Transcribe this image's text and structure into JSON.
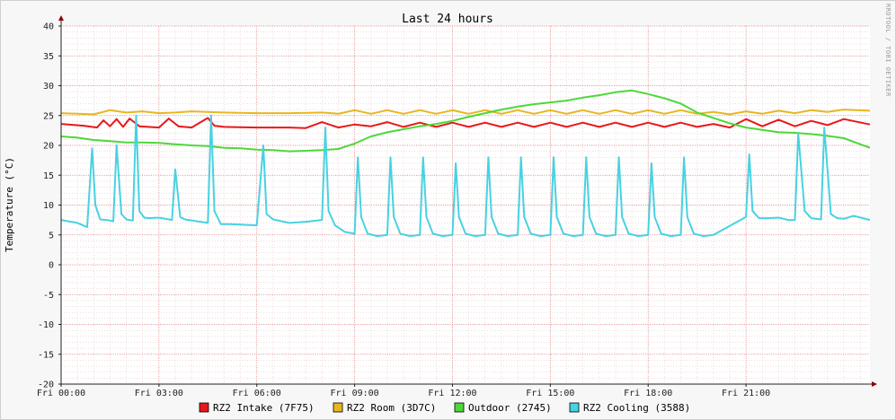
{
  "chart_data": {
    "type": "line",
    "title": "Last 24 hours",
    "ylabel": "Temperature (°C)",
    "xlabel": "",
    "watermark": "RRDTOOL / TOBI OETIKER",
    "x_ticks": [
      "Fri 00:00",
      "Fri 03:00",
      "Fri 06:00",
      "Fri 09:00",
      "Fri 12:00",
      "Fri 15:00",
      "Fri 18:00",
      "Fri 21:00"
    ],
    "xlim": [
      0,
      24.8
    ],
    "ylim": [
      -20,
      40
    ],
    "y_ticks": [
      -20,
      -15,
      -10,
      -5,
      0,
      5,
      10,
      15,
      20,
      25,
      30,
      35,
      40
    ],
    "grid": true,
    "legend_position": "bottom",
    "series": [
      {
        "name": "RZ2 Intake (7F75)",
        "color": "#e8181a",
        "x": [
          0,
          0.7,
          1.1,
          1.3,
          1.5,
          1.7,
          1.9,
          2.1,
          2.4,
          3.0,
          3.3,
          3.6,
          4.0,
          4.5,
          4.7,
          5.0,
          6.0,
          7.0,
          7.5,
          8.0,
          8.5,
          9.0,
          9.5,
          10.0,
          10.5,
          11.0,
          11.5,
          12.0,
          12.5,
          13.0,
          13.5,
          14.0,
          14.5,
          15.0,
          15.5,
          16.0,
          16.5,
          17.0,
          17.5,
          18.0,
          18.5,
          19.0,
          19.5,
          20.0,
          20.5,
          21.0,
          21.5,
          22.0,
          22.5,
          23.0,
          23.5,
          24.0,
          24.8
        ],
        "y": [
          23.6,
          23.3,
          23.0,
          24.2,
          23.2,
          24.4,
          23.1,
          24.5,
          23.2,
          23.0,
          24.5,
          23.2,
          23.0,
          24.6,
          23.3,
          23.1,
          23.0,
          23.0,
          22.9,
          23.9,
          23.0,
          23.5,
          23.2,
          23.9,
          23.1,
          23.8,
          23.1,
          23.8,
          23.1,
          23.8,
          23.1,
          23.8,
          23.1,
          23.8,
          23.1,
          23.8,
          23.1,
          23.8,
          23.1,
          23.8,
          23.1,
          23.8,
          23.1,
          23.6,
          23.0,
          24.4,
          23.2,
          24.3,
          23.2,
          24.1,
          23.4,
          24.4,
          23.5
        ]
      },
      {
        "name": "RZ2 Room (3D7C)",
        "color": "#e6b71e",
        "x": [
          0,
          1.0,
          1.5,
          2.0,
          2.5,
          3.0,
          3.5,
          4.0,
          5.0,
          6.0,
          7.0,
          8.0,
          8.5,
          9.0,
          9.5,
          10.0,
          10.5,
          11.0,
          11.5,
          12.0,
          12.5,
          13.0,
          13.5,
          14.0,
          14.5,
          15.0,
          15.5,
          16.0,
          16.5,
          17.0,
          17.5,
          18.0,
          18.5,
          19.0,
          19.5,
          20.0,
          20.5,
          21.0,
          21.5,
          22.0,
          22.5,
          23.0,
          23.5,
          24.0,
          24.8
        ],
        "y": [
          25.4,
          25.2,
          25.9,
          25.5,
          25.7,
          25.4,
          25.5,
          25.7,
          25.5,
          25.4,
          25.4,
          25.5,
          25.3,
          25.9,
          25.3,
          25.9,
          25.3,
          25.9,
          25.3,
          25.9,
          25.3,
          25.9,
          25.3,
          25.9,
          25.3,
          25.9,
          25.3,
          25.9,
          25.3,
          25.9,
          25.3,
          25.9,
          25.3,
          25.9,
          25.3,
          25.6,
          25.2,
          25.7,
          25.3,
          25.8,
          25.4,
          25.9,
          25.6,
          26.0,
          25.8
        ]
      },
      {
        "name": "Outdoor (2745)",
        "color": "#4dd839",
        "x": [
          0,
          0.5,
          1.0,
          1.5,
          2.0,
          2.5,
          3.0,
          3.5,
          4.0,
          4.5,
          5.0,
          5.5,
          6.0,
          6.5,
          7.0,
          7.5,
          8.0,
          8.5,
          9.0,
          9.5,
          10.0,
          10.5,
          11.0,
          11.5,
          12.0,
          12.5,
          13.0,
          13.5,
          14.0,
          14.5,
          15.0,
          15.5,
          16.0,
          16.5,
          17.0,
          17.5,
          18.0,
          18.5,
          19.0,
          19.5,
          20.0,
          20.5,
          21.0,
          21.5,
          22.0,
          22.5,
          23.0,
          23.5,
          24.0,
          24.8
        ],
        "y": [
          21.5,
          21.3,
          20.9,
          20.7,
          20.5,
          20.5,
          20.4,
          20.2,
          20.0,
          19.9,
          19.6,
          19.5,
          19.3,
          19.2,
          19.0,
          19.1,
          19.2,
          19.4,
          20.3,
          21.5,
          22.2,
          22.7,
          23.2,
          23.6,
          24.1,
          24.8,
          25.4,
          26.0,
          26.5,
          26.9,
          27.2,
          27.5,
          28.0,
          28.4,
          28.9,
          29.2,
          28.6,
          27.9,
          27.0,
          25.5,
          24.6,
          23.7,
          23.0,
          22.6,
          22.2,
          22.1,
          21.9,
          21.6,
          21.2,
          19.6
        ]
      },
      {
        "name": "RZ2 Cooling (3588)",
        "color": "#47d2e2",
        "x": [
          0,
          0.5,
          0.8,
          0.95,
          1.05,
          1.2,
          1.4,
          1.6,
          1.7,
          1.85,
          2.0,
          2.2,
          2.3,
          2.4,
          2.55,
          2.7,
          3.0,
          3.4,
          3.5,
          3.65,
          3.8,
          4.5,
          4.6,
          4.7,
          4.9,
          5.2,
          6.0,
          6.2,
          6.3,
          6.5,
          7.0,
          7.5,
          8.0,
          8.1,
          8.2,
          8.4,
          8.7,
          9.0,
          9.1,
          9.2,
          9.4,
          9.7,
          10.0,
          10.1,
          10.2,
          10.4,
          10.7,
          11.0,
          11.1,
          11.2,
          11.4,
          11.7,
          12.0,
          12.1,
          12.2,
          12.4,
          12.7,
          13.0,
          13.1,
          13.2,
          13.4,
          13.7,
          14.0,
          14.1,
          14.2,
          14.4,
          14.7,
          15.0,
          15.1,
          15.2,
          15.4,
          15.7,
          16.0,
          16.1,
          16.2,
          16.4,
          16.7,
          17.0,
          17.1,
          17.2,
          17.4,
          17.7,
          18.0,
          18.1,
          18.2,
          18.4,
          18.7,
          19.0,
          19.1,
          19.2,
          19.4,
          19.7,
          20.0,
          20.5,
          21.0,
          21.1,
          21.2,
          21.4,
          21.7,
          22.0,
          22.3,
          22.5,
          22.6,
          22.8,
          23.0,
          23.3,
          23.4,
          23.6,
          23.8,
          24.0,
          24.3,
          24.8
        ],
        "y": [
          7.5,
          7.0,
          6.3,
          19.5,
          10.0,
          7.6,
          7.5,
          7.3,
          20.0,
          8.5,
          7.6,
          7.4,
          25.0,
          9.0,
          7.9,
          7.8,
          7.9,
          7.5,
          16.0,
          8.0,
          7.6,
          7.0,
          25.0,
          9.0,
          6.8,
          6.8,
          6.6,
          20.0,
          8.5,
          7.6,
          7.0,
          7.2,
          7.5,
          23.0,
          9.0,
          6.6,
          5.5,
          5.2,
          18.0,
          8.0,
          5.2,
          4.8,
          5.0,
          18.0,
          8.0,
          5.2,
          4.8,
          5.0,
          18.0,
          8.0,
          5.2,
          4.8,
          5.0,
          17.0,
          8.0,
          5.2,
          4.8,
          5.0,
          18.0,
          8.0,
          5.2,
          4.8,
          5.0,
          18.0,
          8.0,
          5.2,
          4.8,
          5.0,
          18.0,
          8.0,
          5.2,
          4.8,
          5.0,
          18.0,
          8.0,
          5.2,
          4.8,
          5.0,
          18.0,
          8.0,
          5.2,
          4.8,
          5.0,
          17.0,
          8.0,
          5.2,
          4.8,
          5.0,
          18.0,
          8.0,
          5.2,
          4.8,
          5.0,
          6.5,
          8.0,
          18.5,
          9.0,
          7.8,
          7.8,
          7.9,
          7.5,
          7.5,
          22.0,
          9.0,
          7.8,
          7.6,
          23.0,
          8.5,
          7.8,
          7.7,
          8.2,
          7.5
        ]
      }
    ]
  }
}
